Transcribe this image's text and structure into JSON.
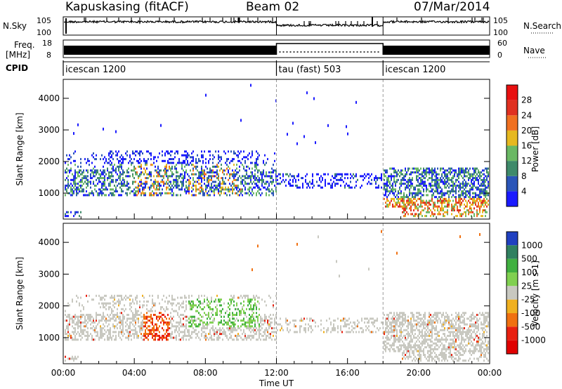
{
  "header": {
    "station": "Kapuskasing (fitACF)",
    "beam": "Beam 02",
    "date": "07/Mar/2014"
  },
  "panels_left": {
    "nsky": "N.Sky",
    "freq": "Freq.",
    "freq_unit": "[MHz]",
    "cpid": "CPID"
  },
  "panels_right": {
    "nsearch": "N.Search",
    "nave": "Nave"
  },
  "axes_small": {
    "nsky_ticks": [
      "10^5",
      "10^0"
    ],
    "nsearch_ticks": [
      "10^5",
      "10^0"
    ],
    "freq_ticks": [
      "18",
      "8"
    ],
    "nave_ticks": [
      "60",
      "0"
    ]
  },
  "cpid_segments": [
    {
      "label": "icescan 1200",
      "start": 0,
      "end": 12
    },
    {
      "label": "tau (fast) 503",
      "start": 12,
      "end": 18
    },
    {
      "label": "icescan 1200",
      "start": 18,
      "end": 24
    }
  ],
  "chart_data": [
    {
      "type": "heatmap",
      "quantity": "Power",
      "ylabel": "Slant Range [km]",
      "ylim": [
        180,
        4600
      ],
      "yticks": [
        1000,
        2000,
        3000,
        4000
      ],
      "colorbar": {
        "label": "Power [dB]",
        "ticks": [
          "4",
          "8",
          "12",
          "16",
          "20",
          "24",
          "28"
        ],
        "colors": [
          "#1a1aff",
          "#2a55b8",
          "#3e8a6a",
          "#6ab864",
          "#e6b820",
          "#f07020",
          "#e03020",
          "#e81010"
        ]
      },
      "xlim": [
        0,
        24
      ],
      "scatter_bands": [
        {
          "start": 0,
          "end": 12,
          "rmin": 900,
          "rmax": 2300,
          "level": "mid"
        },
        {
          "start": 12,
          "end": 18,
          "rmin": 1100,
          "rmax": 1600,
          "level": "low"
        },
        {
          "start": 18,
          "end": 24,
          "rmin": 600,
          "rmax": 1800,
          "level": "mixed"
        }
      ]
    },
    {
      "type": "heatmap",
      "quantity": "Velocity",
      "ylabel": "Slant Range [km]",
      "xlabel": "Time UT",
      "ylim": [
        180,
        4600
      ],
      "yticks": [
        1000,
        2000,
        3000,
        4000
      ],
      "colorbar": {
        "label": "Velocity [m s-1]",
        "ticks": [
          "1000",
          "500",
          "100",
          "25",
          "-25",
          "-100",
          "-500",
          "-1000"
        ],
        "colors": [
          "#2040c0",
          "#308060",
          "#40b040",
          "#80d050",
          "#c8c8c0",
          "#f0b020",
          "#f07010",
          "#e82010",
          "#e00000"
        ]
      },
      "xticks": [
        "00:00",
        "04:00",
        "08:00",
        "12:00",
        "16:00",
        "20:00",
        "00:00"
      ],
      "xlim": [
        0,
        24
      ]
    }
  ]
}
